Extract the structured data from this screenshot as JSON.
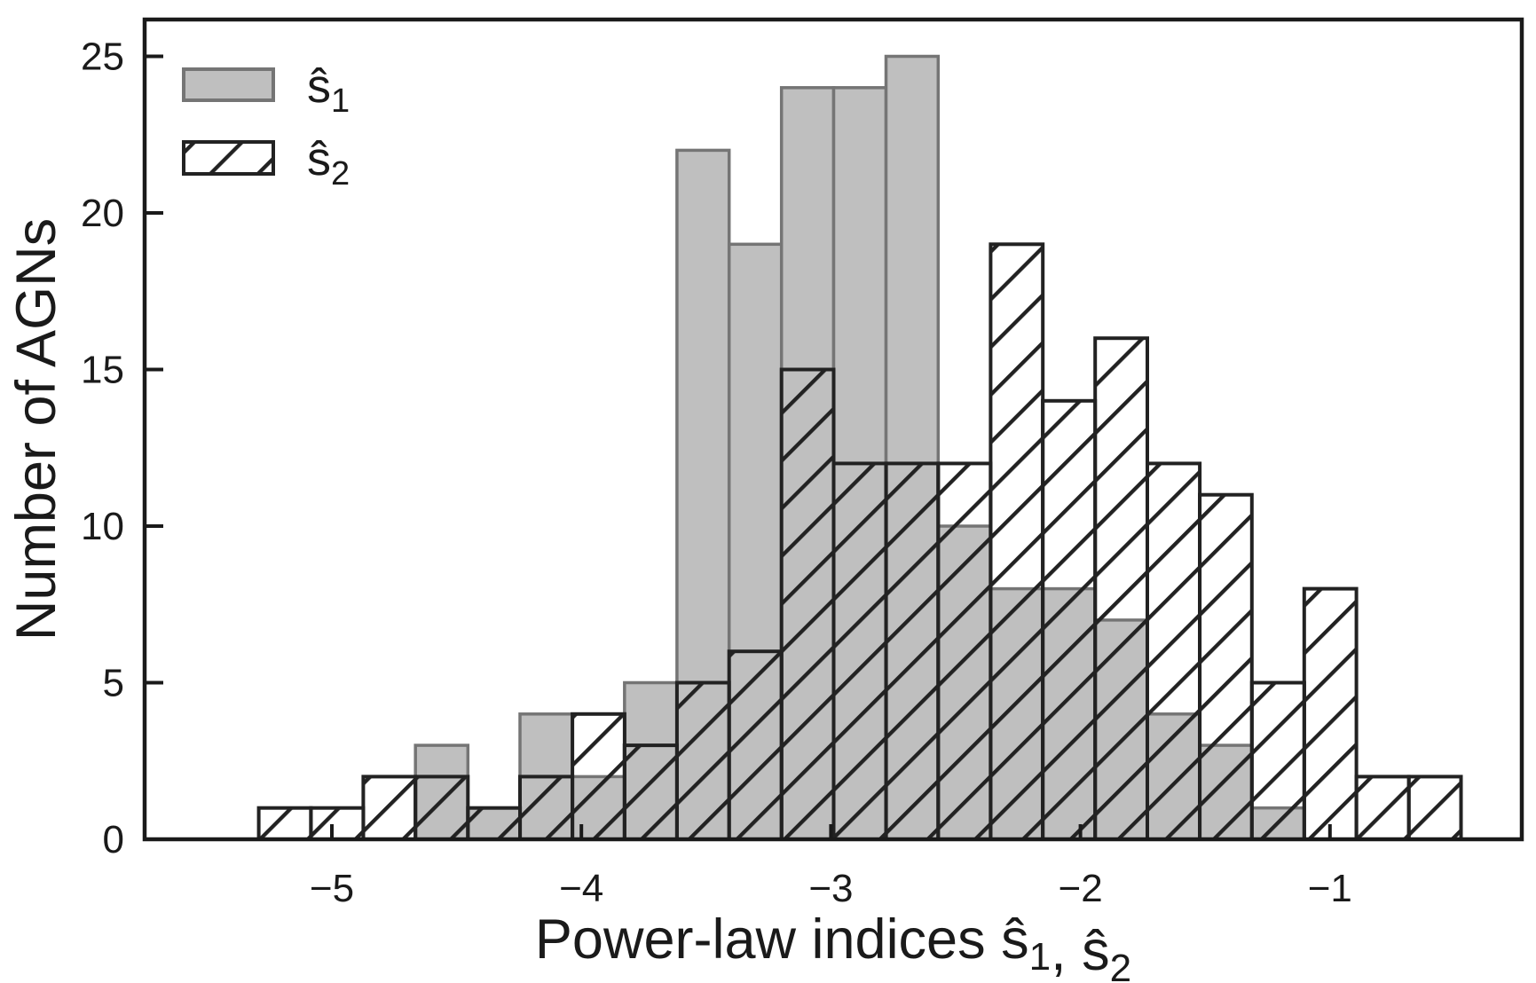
{
  "figure": {
    "background": "#ffffff",
    "text_color": "#1a1a1a",
    "spine_color": "#1a1a1a"
  },
  "axes": {
    "xlabel": "Power-law indices ŝ₁, ŝ₂",
    "xlabel_parts": [
      {
        "text": "Power-law indices ŝ",
        "sub": false
      },
      {
        "text": "1",
        "sub": true
      },
      {
        "text": ", ŝ",
        "sub": false
      },
      {
        "text": "2",
        "sub": true
      }
    ],
    "ylabel": "Number of AGNs",
    "x_ticks": [
      {
        "value": -5,
        "label": "−5"
      },
      {
        "value": -4,
        "label": "−4"
      },
      {
        "value": -3,
        "label": "−3"
      },
      {
        "value": -2,
        "label": "−2"
      },
      {
        "value": -1,
        "label": "−1"
      }
    ],
    "y_ticks": [
      {
        "value": 0,
        "label": "0"
      },
      {
        "value": 5,
        "label": "5"
      },
      {
        "value": 10,
        "label": "10"
      },
      {
        "value": 15,
        "label": "15"
      },
      {
        "value": 20,
        "label": "20"
      },
      {
        "value": 25,
        "label": "25"
      }
    ],
    "xlim": [
      -5.75,
      -0.23
    ],
    "ylim": [
      0,
      26.2
    ],
    "grid": false
  },
  "legend": {
    "position": "upper-left",
    "entries": [
      {
        "label": "ŝ₁",
        "label_parts": [
          {
            "text": "ŝ",
            "sub": false
          },
          {
            "text": "1",
            "sub": true
          }
        ],
        "swatch": "gray-filled"
      },
      {
        "label": "ŝ₂",
        "label_parts": [
          {
            "text": "ŝ",
            "sub": false
          },
          {
            "text": "2",
            "sub": true
          }
        ],
        "swatch": "hatched"
      }
    ]
  },
  "chart_data": {
    "type": "bar",
    "subtype": "overlaid-histogram",
    "title": "",
    "xlabel": "Power-law indices ŝ₁, ŝ₂",
    "ylabel": "Number of AGNs",
    "xlim": [
      -5.75,
      -0.23
    ],
    "ylim": [
      0,
      26.2
    ],
    "grid": false,
    "legend_position": "upper left",
    "bin_edges": [
      -5.293,
      -5.084,
      -4.874,
      -4.665,
      -4.455,
      -4.246,
      -4.036,
      -3.827,
      -3.617,
      -3.408,
      -3.198,
      -2.989,
      -2.779,
      -2.57,
      -2.36,
      -2.151,
      -1.941,
      -1.732,
      -1.522,
      -1.313,
      -1.103,
      -0.894,
      -0.684,
      -0.475
    ],
    "series": [
      {
        "name": "ŝ₁",
        "style": "filled",
        "fill": "#bfbfbf",
        "edge": "#757575",
        "values": [
          0,
          0,
          0,
          3,
          1,
          4,
          2,
          5,
          22,
          19,
          24,
          24,
          25,
          10,
          8,
          8,
          7,
          4,
          3,
          1,
          0,
          0,
          0
        ]
      },
      {
        "name": "ŝ₂",
        "style": "hatched",
        "fill": "none",
        "hatch": "/",
        "edge": "#222222",
        "values": [
          1,
          1,
          2,
          2,
          1,
          2,
          4,
          3,
          5,
          6,
          15,
          12,
          12,
          12,
          19,
          14,
          16,
          12,
          11,
          5,
          8,
          2,
          2
        ]
      }
    ]
  }
}
